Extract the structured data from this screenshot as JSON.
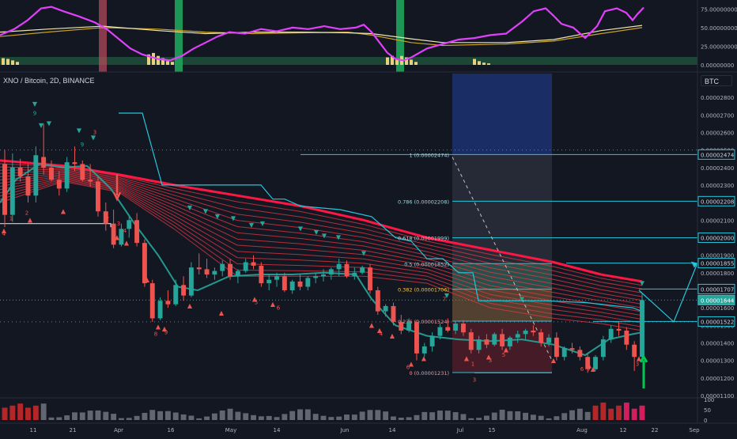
{
  "symbol_title": "XNO / Bitcoin, 2D, BINANCE",
  "currency_badge": "BTC",
  "colors": {
    "background": "#131722",
    "up_candle": "#26a69a",
    "down_candle": "#ef5350",
    "rsi_line": "#e040fb",
    "fib_line": "#26c6da",
    "ribbon_red": "#ff1744",
    "buy_signal": "#26a69a",
    "sell_signal": "#ef5350",
    "volume_up": "#6b6f7a",
    "volume_pink": "#e91e63"
  },
  "indicator_axis_labels": [
    "75.00000000",
    "50.00000000",
    "25.00000000",
    "0.00000000"
  ],
  "price_axis_labels": [
    "0.00002800",
    "0.00002700",
    "0.00002600",
    "0.00002500",
    "0.00002400",
    "0.00002300",
    "0.00002200",
    "0.00002100",
    "0.00002000",
    "0.00001900",
    "0.00001800",
    "0.00001700",
    "0.00001600",
    "0.00001500",
    "0.00001400",
    "0.00001300",
    "0.00001200",
    "0.00001100"
  ],
  "price_axis_highlights": [
    {
      "label": "0.00002474",
      "kind": "outline"
    },
    {
      "label": "0.00002208",
      "kind": "outline"
    },
    {
      "label": "0.00002000",
      "kind": "outline"
    },
    {
      "label": "0.00001855",
      "kind": "outline"
    },
    {
      "label": "0.00001707",
      "kind": "outline"
    },
    {
      "label": "0.00001644",
      "kind": "filled"
    },
    {
      "label": "0.00001522",
      "kind": "outline"
    }
  ],
  "volume_axis_labels": [
    "100",
    "50",
    "0"
  ],
  "time_axis_labels": [
    "11",
    "21",
    "Apr",
    "16",
    "May",
    "14",
    "Jun",
    "14",
    "Jul",
    "15",
    "Aug",
    "12",
    "22",
    "Sep"
  ],
  "fib_levels": [
    {
      "label": "1 (0.00002474)",
      "value": 2.474e-05
    },
    {
      "label": "0.786 (0.00002208)",
      "value": 2.208e-05
    },
    {
      "label": "0.618 (0.00001999)",
      "value": 1.999e-05
    },
    {
      "label": "0.5 (0.00001852)",
      "value": 1.852e-05
    },
    {
      "label": "0.382 (0.00001706)",
      "value": 1.706e-05
    },
    {
      "label": "0.236 (0.00001524)",
      "value": 1.524e-05
    },
    {
      "label": "0 (0.00001231)",
      "value": 1.231e-05
    }
  ],
  "signal_numbers": [
    "1",
    "2",
    "3",
    "4",
    "5",
    "6",
    "7",
    "8",
    "9"
  ],
  "chart_data": {
    "type": "candlestick",
    "pair": "XNO / Bitcoin",
    "timeframe": "2D",
    "exchange": "BINANCE",
    "price_range": [
      1.1e-05,
      2.85e-05
    ],
    "fib_retracement": {
      "high": 2.474e-05,
      "low": 1.231e-05
    },
    "projection_targets": [
      1.855e-05,
      1.707e-05,
      1.522e-05
    ],
    "last_price": 1.644e-05,
    "candles": [
      {
        "o": 2420,
        "h": 2500,
        "l": 2060,
        "c": 2130
      },
      {
        "o": 2130,
        "h": 2480,
        "l": 2090,
        "c": 2400
      },
      {
        "o": 2400,
        "h": 2450,
        "l": 2320,
        "c": 2350
      },
      {
        "o": 2350,
        "h": 2420,
        "l": 2200,
        "c": 2240
      },
      {
        "o": 2240,
        "h": 2520,
        "l": 2200,
        "c": 2470
      },
      {
        "o": 2460,
        "h": 2650,
        "l": 2360,
        "c": 2400
      },
      {
        "o": 2400,
        "h": 2440,
        "l": 2320,
        "c": 2330
      },
      {
        "o": 2330,
        "h": 2380,
        "l": 2240,
        "c": 2280
      },
      {
        "o": 2280,
        "h": 2460,
        "l": 2260,
        "c": 2430
      },
      {
        "o": 2430,
        "h": 2520,
        "l": 2380,
        "c": 2420
      },
      {
        "o": 2420,
        "h": 2440,
        "l": 2320,
        "c": 2330
      },
      {
        "o": 2330,
        "h": 2420,
        "l": 2290,
        "c": 2320
      },
      {
        "o": 2320,
        "h": 2350,
        "l": 2120,
        "c": 2150
      },
      {
        "o": 2150,
        "h": 2200,
        "l": 2040,
        "c": 2080
      },
      {
        "o": 2080,
        "h": 2160,
        "l": 1940,
        "c": 1960
      },
      {
        "o": 1960,
        "h": 2080,
        "l": 1950,
        "c": 2050
      },
      {
        "o": 2050,
        "h": 2120,
        "l": 2000,
        "c": 2100
      },
      {
        "o": 2100,
        "h": 2140,
        "l": 1950,
        "c": 1970
      },
      {
        "o": 1970,
        "h": 1990,
        "l": 1720,
        "c": 1740
      },
      {
        "o": 1740,
        "h": 1760,
        "l": 1520,
        "c": 1540
      },
      {
        "o": 1540,
        "h": 1660,
        "l": 1530,
        "c": 1640
      },
      {
        "o": 1640,
        "h": 1700,
        "l": 1600,
        "c": 1620
      },
      {
        "o": 1620,
        "h": 1760,
        "l": 1610,
        "c": 1730
      },
      {
        "o": 1730,
        "h": 1780,
        "l": 1640,
        "c": 1670
      },
      {
        "o": 1670,
        "h": 1860,
        "l": 1660,
        "c": 1830
      },
      {
        "o": 1830,
        "h": 1910,
        "l": 1790,
        "c": 1820
      },
      {
        "o": 1820,
        "h": 1880,
        "l": 1770,
        "c": 1790
      },
      {
        "o": 1790,
        "h": 1830,
        "l": 1760,
        "c": 1810
      },
      {
        "o": 1810,
        "h": 1870,
        "l": 1780,
        "c": 1850
      },
      {
        "o": 1850,
        "h": 1880,
        "l": 1760,
        "c": 1780
      },
      {
        "o": 1780,
        "h": 1820,
        "l": 1740,
        "c": 1810
      },
      {
        "o": 1810,
        "h": 1880,
        "l": 1800,
        "c": 1860
      },
      {
        "o": 1860,
        "h": 1900,
        "l": 1820,
        "c": 1840
      },
      {
        "o": 1840,
        "h": 1860,
        "l": 1720,
        "c": 1740
      },
      {
        "o": 1740,
        "h": 1790,
        "l": 1700,
        "c": 1760
      },
      {
        "o": 1760,
        "h": 1800,
        "l": 1720,
        "c": 1780
      },
      {
        "o": 1780,
        "h": 1800,
        "l": 1690,
        "c": 1700
      },
      {
        "o": 1700,
        "h": 1760,
        "l": 1680,
        "c": 1750
      },
      {
        "o": 1750,
        "h": 1790,
        "l": 1700,
        "c": 1720
      },
      {
        "o": 1720,
        "h": 1780,
        "l": 1700,
        "c": 1770
      },
      {
        "o": 1770,
        "h": 1800,
        "l": 1740,
        "c": 1780
      },
      {
        "o": 1780,
        "h": 1820,
        "l": 1750,
        "c": 1790
      },
      {
        "o": 1790,
        "h": 1830,
        "l": 1760,
        "c": 1820
      },
      {
        "o": 1820,
        "h": 1880,
        "l": 1780,
        "c": 1850
      },
      {
        "o": 1850,
        "h": 1870,
        "l": 1770,
        "c": 1780
      },
      {
        "o": 1780,
        "h": 1830,
        "l": 1760,
        "c": 1800
      },
      {
        "o": 1800,
        "h": 1840,
        "l": 1790,
        "c": 1830
      },
      {
        "o": 1830,
        "h": 1850,
        "l": 1680,
        "c": 1700
      },
      {
        "o": 1700,
        "h": 1720,
        "l": 1560,
        "c": 1580
      },
      {
        "o": 1580,
        "h": 1620,
        "l": 1550,
        "c": 1610
      },
      {
        "o": 1610,
        "h": 1630,
        "l": 1500,
        "c": 1520
      },
      {
        "o": 1520,
        "h": 1560,
        "l": 1450,
        "c": 1470
      },
      {
        "o": 1470,
        "h": 1540,
        "l": 1460,
        "c": 1520
      },
      {
        "o": 1520,
        "h": 1530,
        "l": 1300,
        "c": 1340
      },
      {
        "o": 1340,
        "h": 1400,
        "l": 1320,
        "c": 1380
      },
      {
        "o": 1380,
        "h": 1460,
        "l": 1350,
        "c": 1440
      },
      {
        "o": 1440,
        "h": 1510,
        "l": 1420,
        "c": 1490
      },
      {
        "o": 1490,
        "h": 1540,
        "l": 1460,
        "c": 1470
      },
      {
        "o": 1470,
        "h": 1520,
        "l": 1450,
        "c": 1510
      },
      {
        "o": 1510,
        "h": 1530,
        "l": 1440,
        "c": 1460
      },
      {
        "o": 1460,
        "h": 1480,
        "l": 1340,
        "c": 1360
      },
      {
        "o": 1360,
        "h": 1440,
        "l": 1340,
        "c": 1420
      },
      {
        "o": 1420,
        "h": 1450,
        "l": 1370,
        "c": 1390
      },
      {
        "o": 1390,
        "h": 1460,
        "l": 1380,
        "c": 1450
      },
      {
        "o": 1450,
        "h": 1480,
        "l": 1360,
        "c": 1380
      },
      {
        "o": 1380,
        "h": 1440,
        "l": 1360,
        "c": 1430
      },
      {
        "o": 1430,
        "h": 1470,
        "l": 1400,
        "c": 1450
      },
      {
        "o": 1450,
        "h": 1480,
        "l": 1420,
        "c": 1470
      },
      {
        "o": 1470,
        "h": 1500,
        "l": 1440,
        "c": 1460
      },
      {
        "o": 1460,
        "h": 1480,
        "l": 1380,
        "c": 1400
      },
      {
        "o": 1400,
        "h": 1450,
        "l": 1380,
        "c": 1430
      },
      {
        "o": 1430,
        "h": 1460,
        "l": 1300,
        "c": 1320
      },
      {
        "o": 1320,
        "h": 1380,
        "l": 1300,
        "c": 1370
      },
      {
        "o": 1370,
        "h": 1400,
        "l": 1340,
        "c": 1360
      },
      {
        "o": 1360,
        "h": 1380,
        "l": 1300,
        "c": 1320
      },
      {
        "o": 1320,
        "h": 1340,
        "l": 1230,
        "c": 1250
      },
      {
        "o": 1250,
        "h": 1330,
        "l": 1240,
        "c": 1320
      },
      {
        "o": 1320,
        "h": 1440,
        "l": 1300,
        "c": 1420
      },
      {
        "o": 1420,
        "h": 1500,
        "l": 1400,
        "c": 1480
      },
      {
        "o": 1480,
        "h": 1520,
        "l": 1440,
        "c": 1470
      },
      {
        "o": 1470,
        "h": 1490,
        "l": 1360,
        "c": 1390
      },
      {
        "o": 1390,
        "h": 1410,
        "l": 1240,
        "c": 1320
      },
      {
        "o": 1320,
        "h": 1680,
        "l": 1310,
        "c": 1644
      }
    ],
    "volume_range": [
      0,
      100
    ],
    "oscillator_range": [
      0,
      80
    ]
  }
}
